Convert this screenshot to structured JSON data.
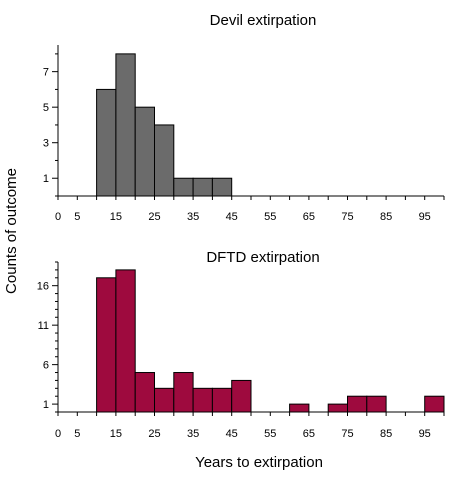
{
  "figure": {
    "ylabel": "Counts of outcome",
    "xlabel": "Years to extirpation"
  },
  "chart_data": [
    {
      "type": "bar",
      "title": "Devil extirpation",
      "xlabel": "Years to extirpation",
      "ylabel": "Counts of outcome",
      "bin_width": 5,
      "bins": [
        {
          "start": 10,
          "end": 15,
          "count": 6
        },
        {
          "start": 15,
          "end": 20,
          "count": 8
        },
        {
          "start": 20,
          "end": 25,
          "count": 5
        },
        {
          "start": 25,
          "end": 30,
          "count": 4
        },
        {
          "start": 30,
          "end": 35,
          "count": 1
        },
        {
          "start": 35,
          "end": 40,
          "count": 1
        },
        {
          "start": 40,
          "end": 45,
          "count": 1
        }
      ],
      "xlim": [
        0,
        100
      ],
      "ylim": [
        0,
        8.5
      ],
      "xticks": [
        0,
        5,
        15,
        25,
        35,
        45,
        55,
        65,
        75,
        85,
        95
      ],
      "xtick_labels": [
        "0",
        "5",
        "15",
        "25",
        "35",
        "45",
        "55",
        "65",
        "75",
        "85",
        "95"
      ],
      "yticks": [
        1,
        3,
        5,
        7
      ],
      "ytick_labels": [
        "1",
        "3",
        "5",
        "7"
      ],
      "color": "#6b6b6b",
      "grid": false
    },
    {
      "type": "bar",
      "title": "DFTD extirpation",
      "xlabel": "Years to extirpation",
      "ylabel": "Counts of outcome",
      "bin_width": 5,
      "bins": [
        {
          "start": 10,
          "end": 15,
          "count": 17
        },
        {
          "start": 15,
          "end": 20,
          "count": 18
        },
        {
          "start": 20,
          "end": 25,
          "count": 5
        },
        {
          "start": 25,
          "end": 30,
          "count": 3
        },
        {
          "start": 30,
          "end": 35,
          "count": 5
        },
        {
          "start": 35,
          "end": 40,
          "count": 3
        },
        {
          "start": 40,
          "end": 45,
          "count": 3
        },
        {
          "start": 45,
          "end": 50,
          "count": 4
        },
        {
          "start": 60,
          "end": 65,
          "count": 1
        },
        {
          "start": 70,
          "end": 75,
          "count": 1
        },
        {
          "start": 75,
          "end": 80,
          "count": 2
        },
        {
          "start": 80,
          "end": 85,
          "count": 2
        },
        {
          "start": 95,
          "end": 100,
          "count": 2
        }
      ],
      "xlim": [
        0,
        100
      ],
      "ylim": [
        0,
        19
      ],
      "xticks": [
        0,
        5,
        15,
        25,
        35,
        45,
        55,
        65,
        75,
        85,
        95
      ],
      "xtick_labels": [
        "0",
        "5",
        "15",
        "25",
        "35",
        "45",
        "55",
        "65",
        "75",
        "85",
        "95"
      ],
      "yticks": [
        1,
        6,
        11,
        16
      ],
      "ytick_labels": [
        "1",
        "6",
        "11",
        "16"
      ],
      "color": "#9e0a3e",
      "grid": false
    }
  ]
}
